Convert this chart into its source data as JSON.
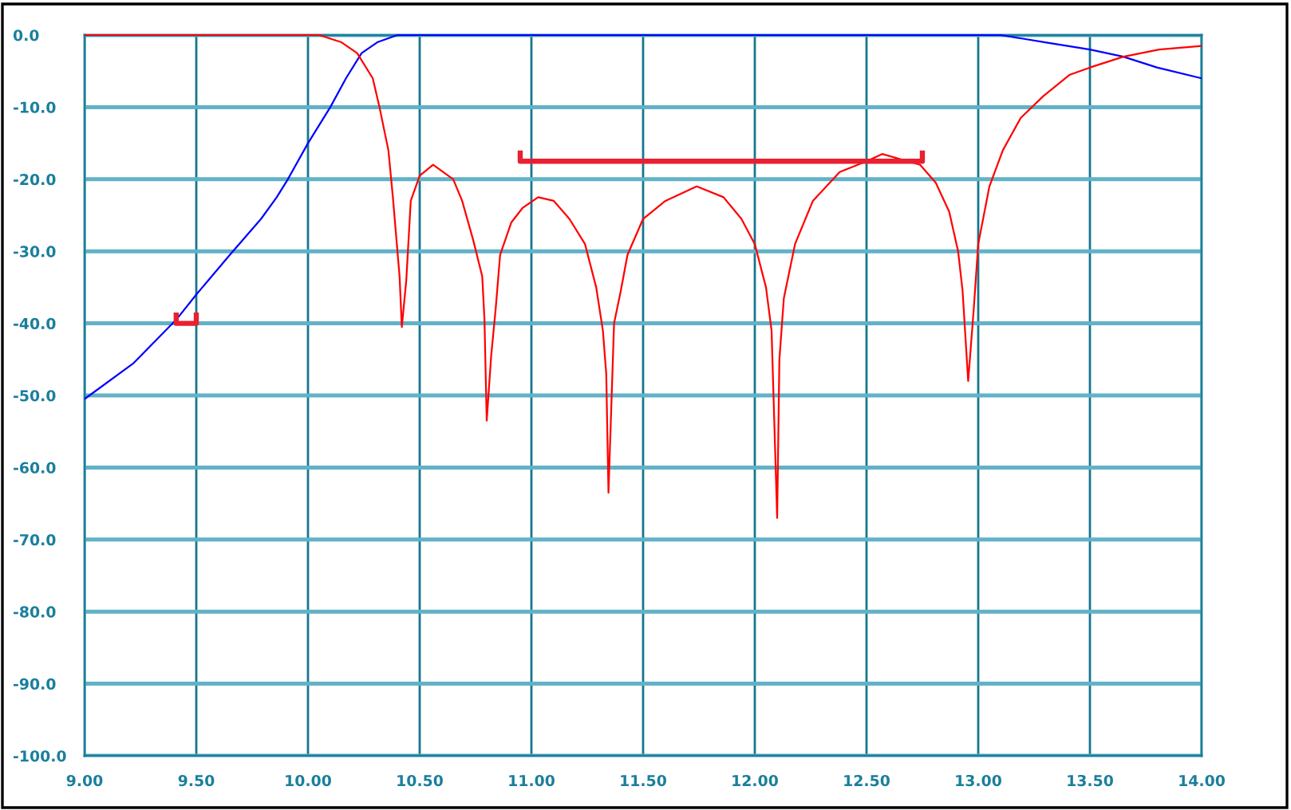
{
  "chart_data": {
    "type": "line",
    "series": [
      {
        "color": "#0000ff",
        "x": [
          9.0,
          9.22,
          9.41,
          9.5,
          9.65,
          9.79,
          9.86,
          9.91,
          10.0,
          10.1,
          10.17,
          10.24,
          10.31,
          10.4,
          10.5,
          11.0,
          11.5,
          12.0,
          12.5,
          13.0,
          13.1,
          13.2,
          13.3,
          13.4,
          13.5,
          13.65,
          13.8,
          14.0
        ],
        "values": [
          -50.5,
          -45.5,
          -39.5,
          -36,
          -30.5,
          -25.5,
          -22.5,
          -20,
          -15,
          -10,
          -6,
          -2.5,
          -1,
          0,
          0,
          0,
          0,
          0,
          0,
          0,
          0,
          -0.5,
          -1,
          -1.5,
          -2,
          -3,
          -4.5,
          -6
        ]
      },
      {
        "color": "#ff0000",
        "x": [
          9.0,
          9.84,
          10.05,
          10.15,
          10.22,
          10.29,
          10.32,
          10.36,
          10.38,
          10.41,
          10.42,
          10.44,
          10.46,
          10.5,
          10.56,
          10.65,
          10.69,
          10.74,
          10.78,
          10.79,
          10.8,
          10.82,
          10.84,
          10.86,
          10.91,
          10.96,
          11.03,
          11.1,
          11.17,
          11.24,
          11.29,
          11.32,
          11.335,
          11.345,
          11.37,
          11.4,
          11.43,
          11.5,
          11.6,
          11.74,
          11.86,
          11.94,
          12.0,
          12.05,
          12.075,
          12.1,
          12.11,
          12.13,
          12.18,
          12.26,
          12.38,
          12.5,
          12.57,
          12.74,
          12.81,
          12.87,
          12.91,
          12.93,
          12.955,
          12.98,
          13.0,
          13.05,
          13.11,
          13.19,
          13.29,
          13.41,
          13.5,
          13.65,
          13.81,
          14.0
        ],
        "values": [
          0,
          0,
          0,
          -1,
          -2.5,
          -6,
          -10,
          -16,
          -22.5,
          -33.5,
          -40.5,
          -34,
          -23,
          -19.5,
          -18,
          -20,
          -23,
          -28.5,
          -33.5,
          -39.5,
          -53.5,
          -44.5,
          -38,
          -30.5,
          -26,
          -24,
          -22.5,
          -23,
          -25.5,
          -29,
          -35,
          -41,
          -47,
          -63.5,
          -40,
          -35.5,
          -30.5,
          -25.5,
          -23,
          -21,
          -22.5,
          -25.5,
          -29,
          -35,
          -41,
          -67,
          -45,
          -36.5,
          -29,
          -23,
          -19,
          -17.5,
          -16.5,
          -18,
          -20.5,
          -24.5,
          -30,
          -35.5,
          -48,
          -38,
          -29,
          -21,
          -16,
          -11.5,
          -8.5,
          -5.5,
          -4.5,
          -3,
          -2,
          -1.5
        ]
      },
      {
        "color": "#e82030",
        "x": [
          9.41,
          9.41,
          9.5,
          9.5
        ],
        "values": [
          -38.5,
          -40,
          -40,
          -38.5
        ]
      },
      {
        "color": "#e82030",
        "x": [
          10.95,
          10.95,
          12.75,
          12.75
        ],
        "values": [
          -16,
          -17.5,
          -17.5,
          -16
        ]
      }
    ],
    "xlim": [
      9.0,
      14.0
    ],
    "xticks": [
      {
        "value": 9.0,
        "label": "9.00"
      },
      {
        "value": 9.5,
        "label": "9.50"
      },
      {
        "value": 10.0,
        "label": "10.00"
      },
      {
        "value": 10.5,
        "label": "10.50"
      },
      {
        "value": 11.0,
        "label": "11.00"
      },
      {
        "value": 11.5,
        "label": "11.50"
      },
      {
        "value": 12.0,
        "label": "12.00"
      },
      {
        "value": 12.5,
        "label": "12.50"
      },
      {
        "value": 13.0,
        "label": "13.00"
      },
      {
        "value": 13.5,
        "label": "13.50"
      },
      {
        "value": 14.0,
        "label": "14.00"
      }
    ],
    "ylim": [
      -100,
      0
    ],
    "yticks": [
      {
        "value": 0,
        "label": "0.0"
      },
      {
        "value": -10,
        "label": "-10.0"
      },
      {
        "value": -20,
        "label": "-20.0"
      },
      {
        "value": -30,
        "label": "-30.0"
      },
      {
        "value": -40,
        "label": "-40.0"
      },
      {
        "value": -50,
        "label": "-50.0"
      },
      {
        "value": -60,
        "label": "-60.0"
      },
      {
        "value": -70,
        "label": "-70.0"
      },
      {
        "value": -80,
        "label": "-80.0"
      },
      {
        "value": -90,
        "label": "-90.0"
      },
      {
        "value": -100,
        "label": "-100.0"
      }
    ],
    "grid": true
  }
}
